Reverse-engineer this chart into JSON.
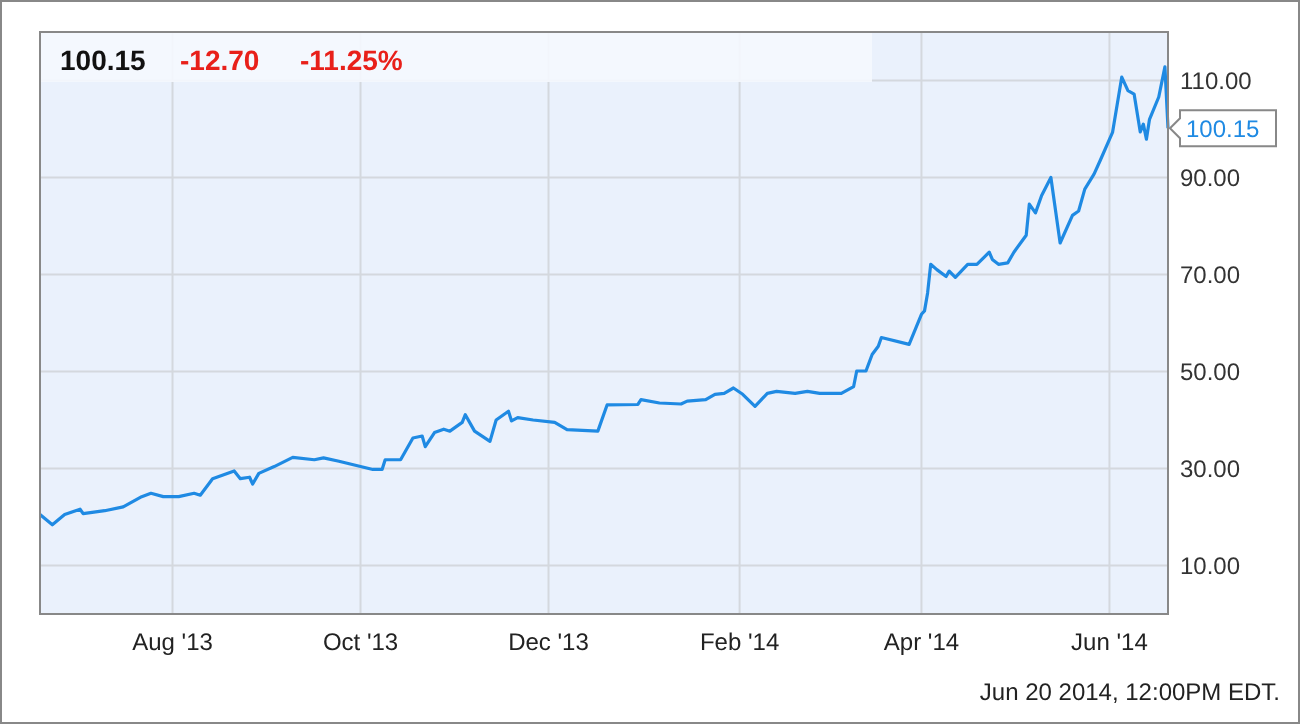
{
  "chart_data": {
    "type": "line",
    "x": [
      "2013-06-19",
      "2013-06-23",
      "2013-06-27",
      "2013-07-02",
      "2013-07-03",
      "2013-07-10",
      "2013-07-16",
      "2013-07-22",
      "2013-07-25",
      "2013-07-29",
      "2013-08-03",
      "2013-08-08",
      "2013-08-10",
      "2013-08-14",
      "2013-08-21",
      "2013-08-23",
      "2013-08-26",
      "2013-08-27",
      "2013-08-29",
      "2013-09-03",
      "2013-09-09",
      "2013-09-16",
      "2013-09-19",
      "2013-09-24",
      "2013-10-01",
      "2013-10-05",
      "2013-10-08",
      "2013-10-09",
      "2013-10-14",
      "2013-10-18",
      "2013-10-21",
      "2013-10-22",
      "2013-10-25",
      "2013-10-28",
      "2013-10-30",
      "2013-11-03",
      "2013-11-04",
      "2013-11-07",
      "2013-11-12",
      "2013-11-14",
      "2013-11-18",
      "2013-11-19",
      "2013-11-21",
      "2013-11-26",
      "2013-12-03",
      "2013-12-07",
      "2013-12-17",
      "2013-12-20",
      "2013-12-30",
      "2013-12-31",
      "2014-01-06",
      "2014-01-13",
      "2014-01-15",
      "2014-01-21",
      "2014-01-24",
      "2014-01-27",
      "2014-01-30",
      "2014-02-02",
      "2014-02-06",
      "2014-02-10",
      "2014-02-13",
      "2014-02-19",
      "2014-02-23",
      "2014-02-27",
      "2014-03-06",
      "2014-03-10",
      "2014-03-11",
      "2014-03-14",
      "2014-03-16",
      "2014-03-18",
      "2014-03-19",
      "2014-03-28",
      "2014-04-01",
      "2014-04-02",
      "2014-04-03",
      "2014-04-04",
      "2014-04-06",
      "2014-04-09",
      "2014-04-10",
      "2014-04-12",
      "2014-04-16",
      "2014-04-19",
      "2014-04-23",
      "2014-04-24",
      "2014-04-26",
      "2014-04-29",
      "2014-05-01",
      "2014-05-05",
      "2014-05-06",
      "2014-05-08",
      "2014-05-10",
      "2014-05-13",
      "2014-05-16",
      "2014-05-20",
      "2014-05-22",
      "2014-05-24",
      "2014-05-27",
      "2014-05-29",
      "2014-06-02",
      "2014-06-05",
      "2014-06-07",
      "2014-06-09",
      "2014-06-11",
      "2014-06-12",
      "2014-06-13",
      "2014-06-14",
      "2014-06-17",
      "2014-06-19",
      "2014-06-20"
    ],
    "series": [
      {
        "color": "#1f8ae3",
        "values": [
          20.5,
          18.4,
          20.5,
          21.6,
          20.7,
          21.3,
          22.1,
          24.2,
          24.9,
          24.2,
          24.2,
          24.9,
          24.5,
          27.9,
          29.5,
          27.9,
          28.2,
          26.8,
          29.0,
          30.4,
          32.3,
          31.8,
          32.2,
          31.5,
          30.4,
          29.8,
          29.8,
          31.8,
          31.8,
          36.3,
          36.7,
          34.5,
          37.4,
          38.1,
          37.7,
          39.5,
          41.1,
          37.7,
          35.6,
          40.0,
          41.8,
          39.8,
          40.5,
          40.0,
          39.5,
          38.0,
          37.7,
          43.1,
          43.2,
          44.2,
          43.5,
          43.3,
          43.9,
          44.2,
          45.3,
          45.5,
          46.6,
          45.3,
          42.8,
          45.5,
          45.9,
          45.5,
          45.9,
          45.5,
          45.5,
          46.9,
          50.1,
          50.1,
          53.5,
          55.2,
          57.0,
          55.6,
          61.8,
          62.5,
          66.2,
          72.1,
          71.0,
          69.6,
          70.7,
          69.4,
          72.1,
          72.1,
          74.6,
          73.1,
          72.1,
          72.4,
          74.6,
          78.1,
          84.5,
          82.7,
          86.3,
          90.0,
          76.5,
          82.2,
          83.1,
          87.6,
          90.7,
          93.5,
          99.3,
          110.7,
          107.9,
          107.2,
          99.4,
          101.0,
          97.9,
          102.0,
          106.6,
          112.8,
          100.15
        ]
      }
    ],
    "xlim": [
      "2013-06-19",
      "2014-06-20"
    ],
    "xticks": [
      {
        "value": "2013-08-01",
        "label": "Aug '13"
      },
      {
        "value": "2013-10-01",
        "label": "Oct '13"
      },
      {
        "value": "2013-12-01",
        "label": "Dec '13"
      },
      {
        "value": "2014-02-01",
        "label": "Feb '14"
      },
      {
        "value": "2014-04-01",
        "label": "Apr '14"
      },
      {
        "value": "2014-06-01",
        "label": "Jun '14"
      }
    ],
    "ylim": [
      0,
      120
    ],
    "yticks": [
      {
        "value": 10,
        "label": "10.00"
      },
      {
        "value": 30,
        "label": "30.00"
      },
      {
        "value": 50,
        "label": "50.00"
      },
      {
        "value": 70,
        "label": "70.00"
      },
      {
        "value": 90,
        "label": "90.00"
      },
      {
        "value": 110,
        "label": "110.00"
      }
    ],
    "grid": true,
    "annotations": [
      "100.15",
      "-12.70",
      "-11.25%",
      {
        "text": "100.15",
        "x": "2014-06-20",
        "y": 100.15
      },
      "Jun 20 2014, 12:00PM EDT."
    ]
  }
}
